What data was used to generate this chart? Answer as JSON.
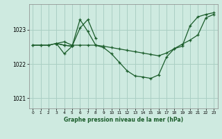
{
  "title": "Graphe pression niveau de la mer (hPa)",
  "bg_color": "#ceeae0",
  "grid_color": "#aacfc4",
  "line_color": "#1a5c2a",
  "xlim": [
    -0.5,
    23.5
  ],
  "ylim": [
    1020.7,
    1023.75
  ],
  "yticks": [
    1021,
    1022,
    1023
  ],
  "xticks": [
    0,
    1,
    2,
    3,
    4,
    5,
    6,
    7,
    8,
    9,
    10,
    11,
    12,
    13,
    14,
    15,
    16,
    17,
    18,
    19,
    20,
    21,
    22,
    23
  ],
  "series": [
    {
      "x": [
        0,
        1,
        2,
        3,
        4,
        5,
        6,
        7,
        8,
        9,
        10,
        11,
        12,
        13,
        14,
        15,
        16,
        17,
        18,
        19,
        20,
        21,
        22,
        23
      ],
      "y": [
        1022.55,
        1022.55,
        1022.55,
        1022.6,
        1022.65,
        1022.55,
        1022.55,
        1022.55,
        1022.55,
        1022.52,
        1022.48,
        1022.44,
        1022.4,
        1022.36,
        1022.32,
        1022.28,
        1022.24,
        1022.32,
        1022.45,
        1022.58,
        1022.7,
        1022.85,
        1023.35,
        1023.45
      ]
    },
    {
      "x": [
        0,
        1,
        2,
        3,
        4,
        5,
        6,
        7,
        8,
        9,
        10,
        11,
        12,
        13,
        14,
        15,
        16,
        17,
        18,
        19,
        20,
        21,
        22,
        23
      ],
      "y": [
        1022.55,
        1022.55,
        1022.55,
        1022.6,
        1022.55,
        1022.52,
        1023.3,
        1022.95,
        1022.55,
        1022.48,
        1022.3,
        1022.05,
        1021.8,
        1021.65,
        1021.62,
        1021.58,
        1021.68,
        1022.2,
        1022.45,
        1022.52,
        1023.12,
        1023.38,
        1023.45,
        1023.5
      ]
    },
    {
      "x": [
        3,
        4,
        5,
        6,
        7,
        8
      ],
      "y": [
        1022.6,
        1022.55,
        1022.52,
        1023.05,
        1023.3,
        1022.75
      ]
    },
    {
      "x": [
        3,
        4,
        5
      ],
      "y": [
        1022.6,
        1022.3,
        1022.52
      ]
    }
  ]
}
